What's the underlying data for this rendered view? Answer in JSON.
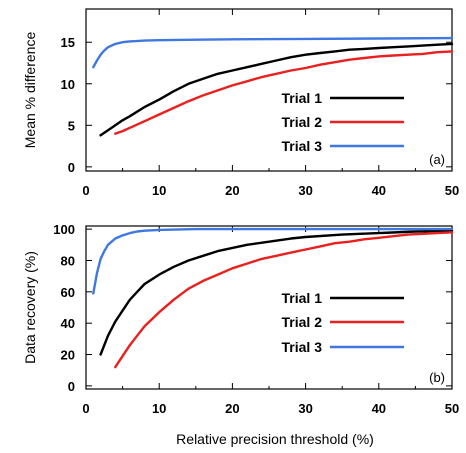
{
  "chart_data": [
    {
      "type": "line",
      "panel_label": "(a)",
      "xlabel": "",
      "ylabel": "Mean % difference",
      "xlim": [
        0,
        50
      ],
      "ylim": [
        -0.5,
        19
      ],
      "xticks": [
        0,
        10,
        20,
        30,
        40,
        50
      ],
      "yticks": [
        0,
        5,
        10,
        15
      ],
      "legend_position": "right-center",
      "series": [
        {
          "name": "Trial 1",
          "color": "#000000",
          "x": [
            2,
            3,
            4,
            5,
            6,
            8,
            10,
            12,
            14,
            16,
            18,
            20,
            22,
            24,
            26,
            28,
            30,
            32,
            34,
            36,
            38,
            40,
            42,
            44,
            46,
            48,
            50
          ],
          "y": [
            3.8,
            4.4,
            5.0,
            5.6,
            6.1,
            7.2,
            8.1,
            9.1,
            10.0,
            10.6,
            11.2,
            11.6,
            12.0,
            12.4,
            12.8,
            13.2,
            13.5,
            13.7,
            13.9,
            14.1,
            14.2,
            14.3,
            14.4,
            14.5,
            14.6,
            14.7,
            14.8
          ]
        },
        {
          "name": "Trial 2",
          "color": "#e8201e",
          "x": [
            4,
            5,
            6,
            8,
            10,
            12,
            14,
            16,
            18,
            20,
            22,
            24,
            26,
            28,
            30,
            32,
            34,
            36,
            38,
            40,
            42,
            44,
            46,
            48,
            50
          ],
          "y": [
            4.0,
            4.3,
            4.7,
            5.5,
            6.3,
            7.1,
            7.9,
            8.6,
            9.2,
            9.8,
            10.3,
            10.8,
            11.2,
            11.6,
            11.9,
            12.3,
            12.6,
            12.9,
            13.1,
            13.3,
            13.4,
            13.5,
            13.6,
            13.8,
            13.9
          ]
        },
        {
          "name": "Trial 3",
          "color": "#3f78e0",
          "x": [
            1,
            1.5,
            2,
            2.5,
            3,
            4,
            5,
            6,
            8,
            10,
            15,
            20,
            30,
            40,
            50
          ],
          "y": [
            12.0,
            12.8,
            13.5,
            14.0,
            14.4,
            14.8,
            15.0,
            15.1,
            15.2,
            15.25,
            15.3,
            15.35,
            15.4,
            15.45,
            15.5
          ]
        }
      ]
    },
    {
      "type": "line",
      "panel_label": "(b)",
      "xlabel": "Relative precision threshold (%)",
      "ylabel": "Data recovery (%)",
      "xlim": [
        0,
        50
      ],
      "ylim": [
        -2,
        102
      ],
      "xticks": [
        0,
        10,
        20,
        30,
        40,
        50
      ],
      "yticks": [
        0,
        20,
        40,
        60,
        80,
        100
      ],
      "legend_position": "right-center",
      "series": [
        {
          "name": "Trial 1",
          "color": "#000000",
          "x": [
            2,
            3,
            4,
            5,
            6,
            7,
            8,
            10,
            12,
            14,
            16,
            18,
            20,
            22,
            25,
            28,
            30,
            35,
            40,
            45,
            50
          ],
          "y": [
            20,
            32,
            41,
            48,
            55,
            60,
            65,
            71,
            76,
            80,
            83,
            86,
            88,
            90,
            92,
            94,
            95,
            96.5,
            97.5,
            98.5,
            99
          ]
        },
        {
          "name": "Trial 2",
          "color": "#e8201e",
          "x": [
            4,
            5,
            6,
            7,
            8,
            10,
            12,
            14,
            16,
            18,
            20,
            22,
            24,
            26,
            28,
            30,
            32,
            34,
            36,
            38,
            40,
            42,
            44,
            46,
            48,
            50
          ],
          "y": [
            12,
            19,
            26,
            32,
            38,
            47,
            55,
            62,
            67,
            71,
            75,
            78,
            81,
            83,
            85,
            87,
            89,
            91,
            92,
            93.5,
            94.5,
            95.5,
            96.5,
            97,
            97.5,
            98
          ]
        },
        {
          "name": "Trial 3",
          "color": "#3f78e0",
          "x": [
            1,
            1.5,
            2,
            2.5,
            3,
            4,
            5,
            6,
            7,
            8,
            10,
            15,
            20,
            30,
            40,
            50
          ],
          "y": [
            59,
            72,
            81,
            86,
            90,
            94,
            96,
            97.5,
            98.5,
            99,
            99.5,
            100,
            100,
            100,
            100,
            100
          ]
        }
      ]
    }
  ]
}
